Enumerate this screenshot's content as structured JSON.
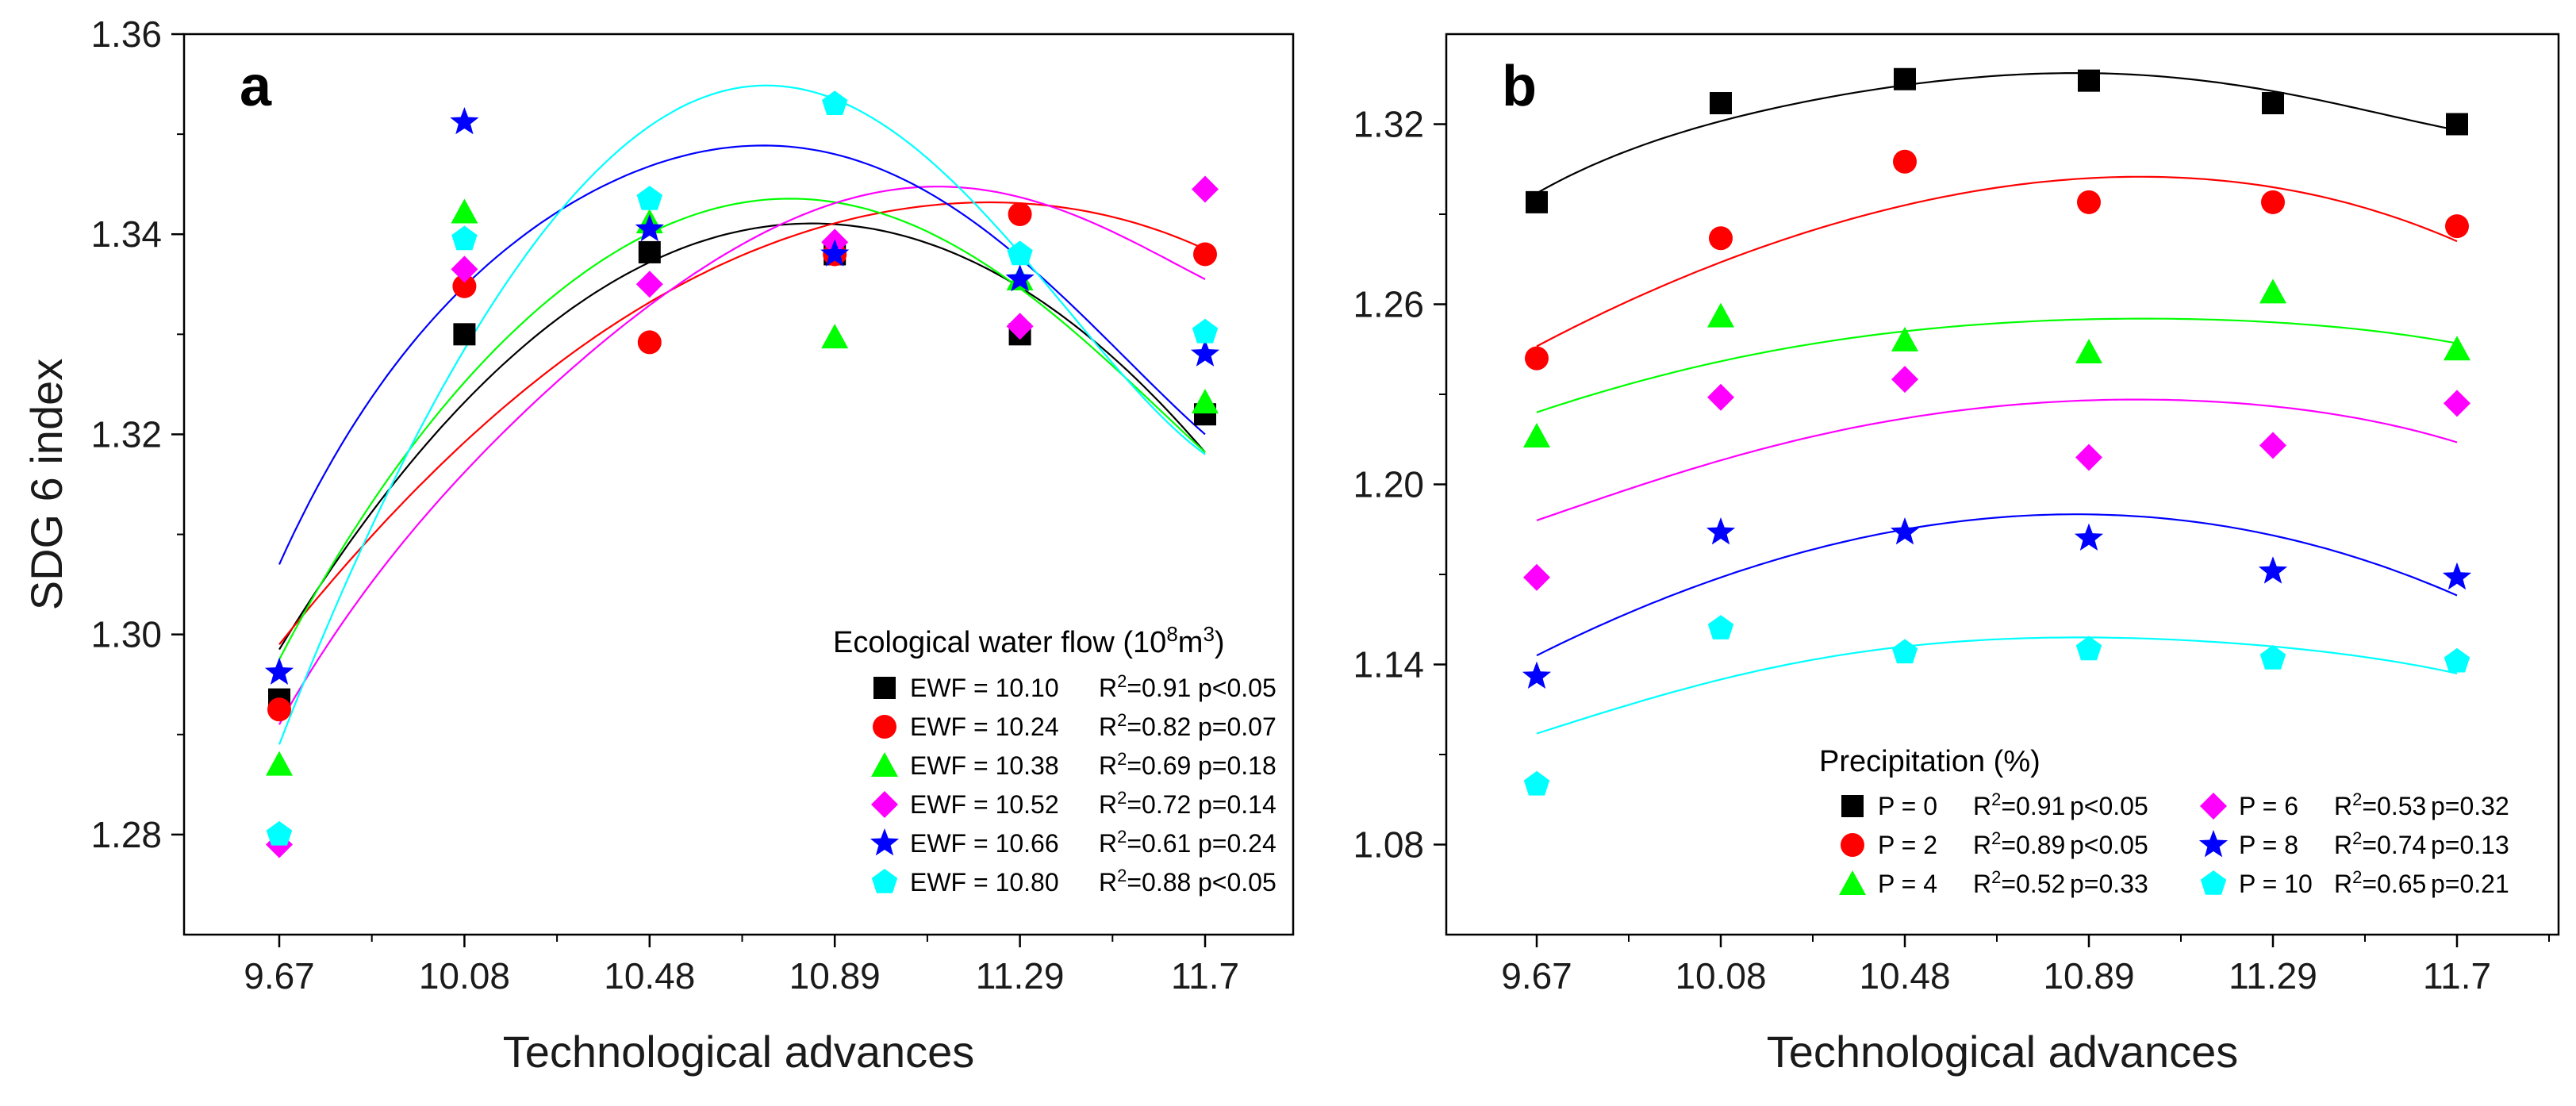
{
  "chart_data": [
    {
      "type": "scatter",
      "panel_label": "a",
      "xlabel": "Technological advances",
      "ylabel": "SDG 6 index",
      "xticks": [
        "9.67",
        "10.08",
        "10.48",
        "10.89",
        "11.29",
        "11.7"
      ],
      "ylim": [
        1.27,
        1.36
      ],
      "yticks": [
        "1.28",
        "1.30",
        "1.32",
        "1.34",
        "1.36"
      ],
      "legend_title": "Ecological water flow (10",
      "legend_title_sup": "8",
      "legend_title_unit": "m",
      "legend_title_sup2": "3",
      "legend_title_close": ")",
      "legend_position": "bottom-right",
      "series": [
        {
          "name": "EWF = 10.10",
          "r2": "=0.91",
          "p": "p<0.05",
          "color": "#000000",
          "marker": "square",
          "values": [
            1.2935,
            1.33,
            1.3382,
            1.338,
            1.33,
            1.322
          ],
          "fit": [
            1.2985,
            1.3232,
            1.3372,
            1.341,
            1.3347,
            1.3182
          ]
        },
        {
          "name": "EWF = 10.24",
          "r2": "=0.82",
          "p": "p=0.07",
          "color": "#ff0000",
          "marker": "circle",
          "values": [
            1.2925,
            1.3348,
            1.3292,
            1.338,
            1.342,
            1.338
          ],
          "fit": [
            1.299,
            1.3192,
            1.3332,
            1.3411,
            1.3431,
            1.3385
          ]
        },
        {
          "name": "EWF = 10.38",
          "r2": "=0.69",
          "p": "p=0.18",
          "color": "#00ff00",
          "marker": "triangle",
          "values": [
            1.287,
            1.3422,
            1.3412,
            1.3297,
            1.3355,
            1.3232
          ],
          "fit": [
            1.2975,
            1.3252,
            1.3401,
            1.3432,
            1.3346,
            1.3182
          ]
        },
        {
          "name": "EWF = 10.52",
          "r2": "=0.72",
          "p": "p=0.14",
          "color": "#ff00ff",
          "marker": "diamond",
          "values": [
            1.279,
            1.3365,
            1.335,
            1.3392,
            1.3308,
            1.3445
          ],
          "fit": [
            1.291,
            1.3162,
            1.3329,
            1.3431,
            1.3437,
            1.3355
          ]
        },
        {
          "name": "EWF = 10.66",
          "r2": "=0.61",
          "p": "p=0.24",
          "color": "#0000ff",
          "marker": "star",
          "values": [
            1.2962,
            1.3512,
            1.3405,
            1.338,
            1.3355,
            1.328
          ],
          "fit": [
            1.307,
            1.3348,
            1.3468,
            1.348,
            1.3376,
            1.32
          ]
        },
        {
          "name": "EWF = 10.80",
          "r2": "=0.88",
          "p": "p<0.05",
          "color": "#00ffff",
          "marker": "pentagon",
          "values": [
            1.28,
            1.3395,
            1.3435,
            1.353,
            1.338,
            1.3302
          ],
          "fit": [
            1.289,
            1.3285,
            1.3508,
            1.3535,
            1.3381,
            1.318
          ]
        }
      ]
    },
    {
      "type": "scatter",
      "panel_label": "b",
      "xlabel": "Technological advances",
      "ylabel": "",
      "xticks": [
        "9.67",
        "10.08",
        "10.48",
        "10.89",
        "11.29",
        "11.7"
      ],
      "ylim": [
        1.05,
        1.35
      ],
      "yticks": [
        "1.08",
        "1.14",
        "1.20",
        "1.26",
        "1.32"
      ],
      "legend_title": "Precipitation (%)",
      "legend_position": "bottom",
      "series": [
        {
          "name": "P = 0",
          "r2": "=0.91",
          "p": "p<0.05",
          "color": "#000000",
          "marker": "square",
          "values": [
            1.294,
            1.327,
            1.335,
            1.3345,
            1.327,
            1.32
          ],
          "fit": [
            1.297,
            1.321,
            1.333,
            1.337,
            1.331,
            1.318
          ]
        },
        {
          "name": "P = 2",
          "r2": "=0.89",
          "p": "p<0.05",
          "color": "#ff0000",
          "marker": "circle",
          "values": [
            1.242,
            1.282,
            1.3075,
            1.294,
            1.294,
            1.286
          ],
          "fit": [
            1.246,
            1.274,
            1.293,
            1.302,
            1.299,
            1.281
          ]
        },
        {
          "name": "P = 4",
          "r2": "=0.52",
          "p": "p=0.33",
          "color": "#00ff00",
          "marker": "triangle",
          "values": [
            1.216,
            1.256,
            1.248,
            1.244,
            1.264,
            1.245
          ],
          "fit": [
            1.224,
            1.241,
            1.251,
            1.255,
            1.254,
            1.247
          ]
        },
        {
          "name": "P = 6",
          "r2": "=0.53",
          "p": "p=0.32",
          "color": "#ff00ff",
          "marker": "diamond",
          "values": [
            1.169,
            1.229,
            1.235,
            1.209,
            1.213,
            1.227
          ],
          "fit": [
            1.188,
            1.208,
            1.222,
            1.228,
            1.226,
            1.214
          ]
        },
        {
          "name": "P = 8",
          "r2": "=0.74",
          "p": "p=0.13",
          "color": "#0000ff",
          "marker": "star",
          "values": [
            1.136,
            1.184,
            1.184,
            1.182,
            1.171,
            1.169
          ],
          "fit": [
            1.143,
            1.169,
            1.185,
            1.19,
            1.183,
            1.163
          ]
        },
        {
          "name": "P = 10",
          "r2": "=0.65",
          "p": "p=0.21",
          "color": "#00ffff",
          "marker": "pentagon",
          "values": [
            1.1,
            1.152,
            1.144,
            1.145,
            1.142,
            1.141
          ],
          "fit": [
            1.117,
            1.135,
            1.146,
            1.149,
            1.146,
            1.137
          ]
        }
      ]
    }
  ]
}
